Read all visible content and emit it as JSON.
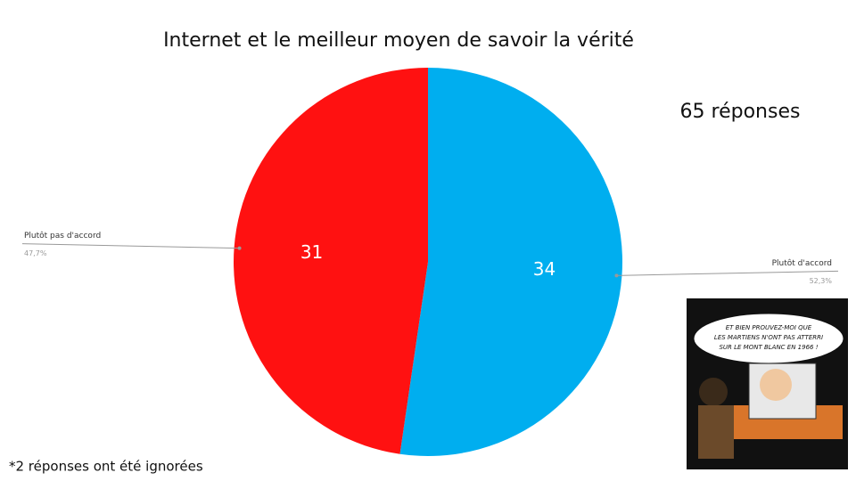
{
  "chart_data": {
    "type": "pie",
    "title": "Internet et le meilleur moyen de savoir la vérité",
    "subtitle": "65 réponses",
    "footnote": "*2 réponses ont été ignorées",
    "categories": [
      "Plutôt d'accord",
      "Plutôt pas d'accord"
    ],
    "values": [
      34,
      31
    ],
    "percent_labels": [
      "52,3%",
      "47,7%"
    ],
    "colors": [
      "#00aeef",
      "#ff1111"
    ],
    "image_caption": [
      "ET BIEN PROUVEZ-MOI QUE",
      "LES MARTIENS N'ONT PAS ATTERRI",
      "SUR LE MONT BLANC EN 1966 !"
    ]
  }
}
